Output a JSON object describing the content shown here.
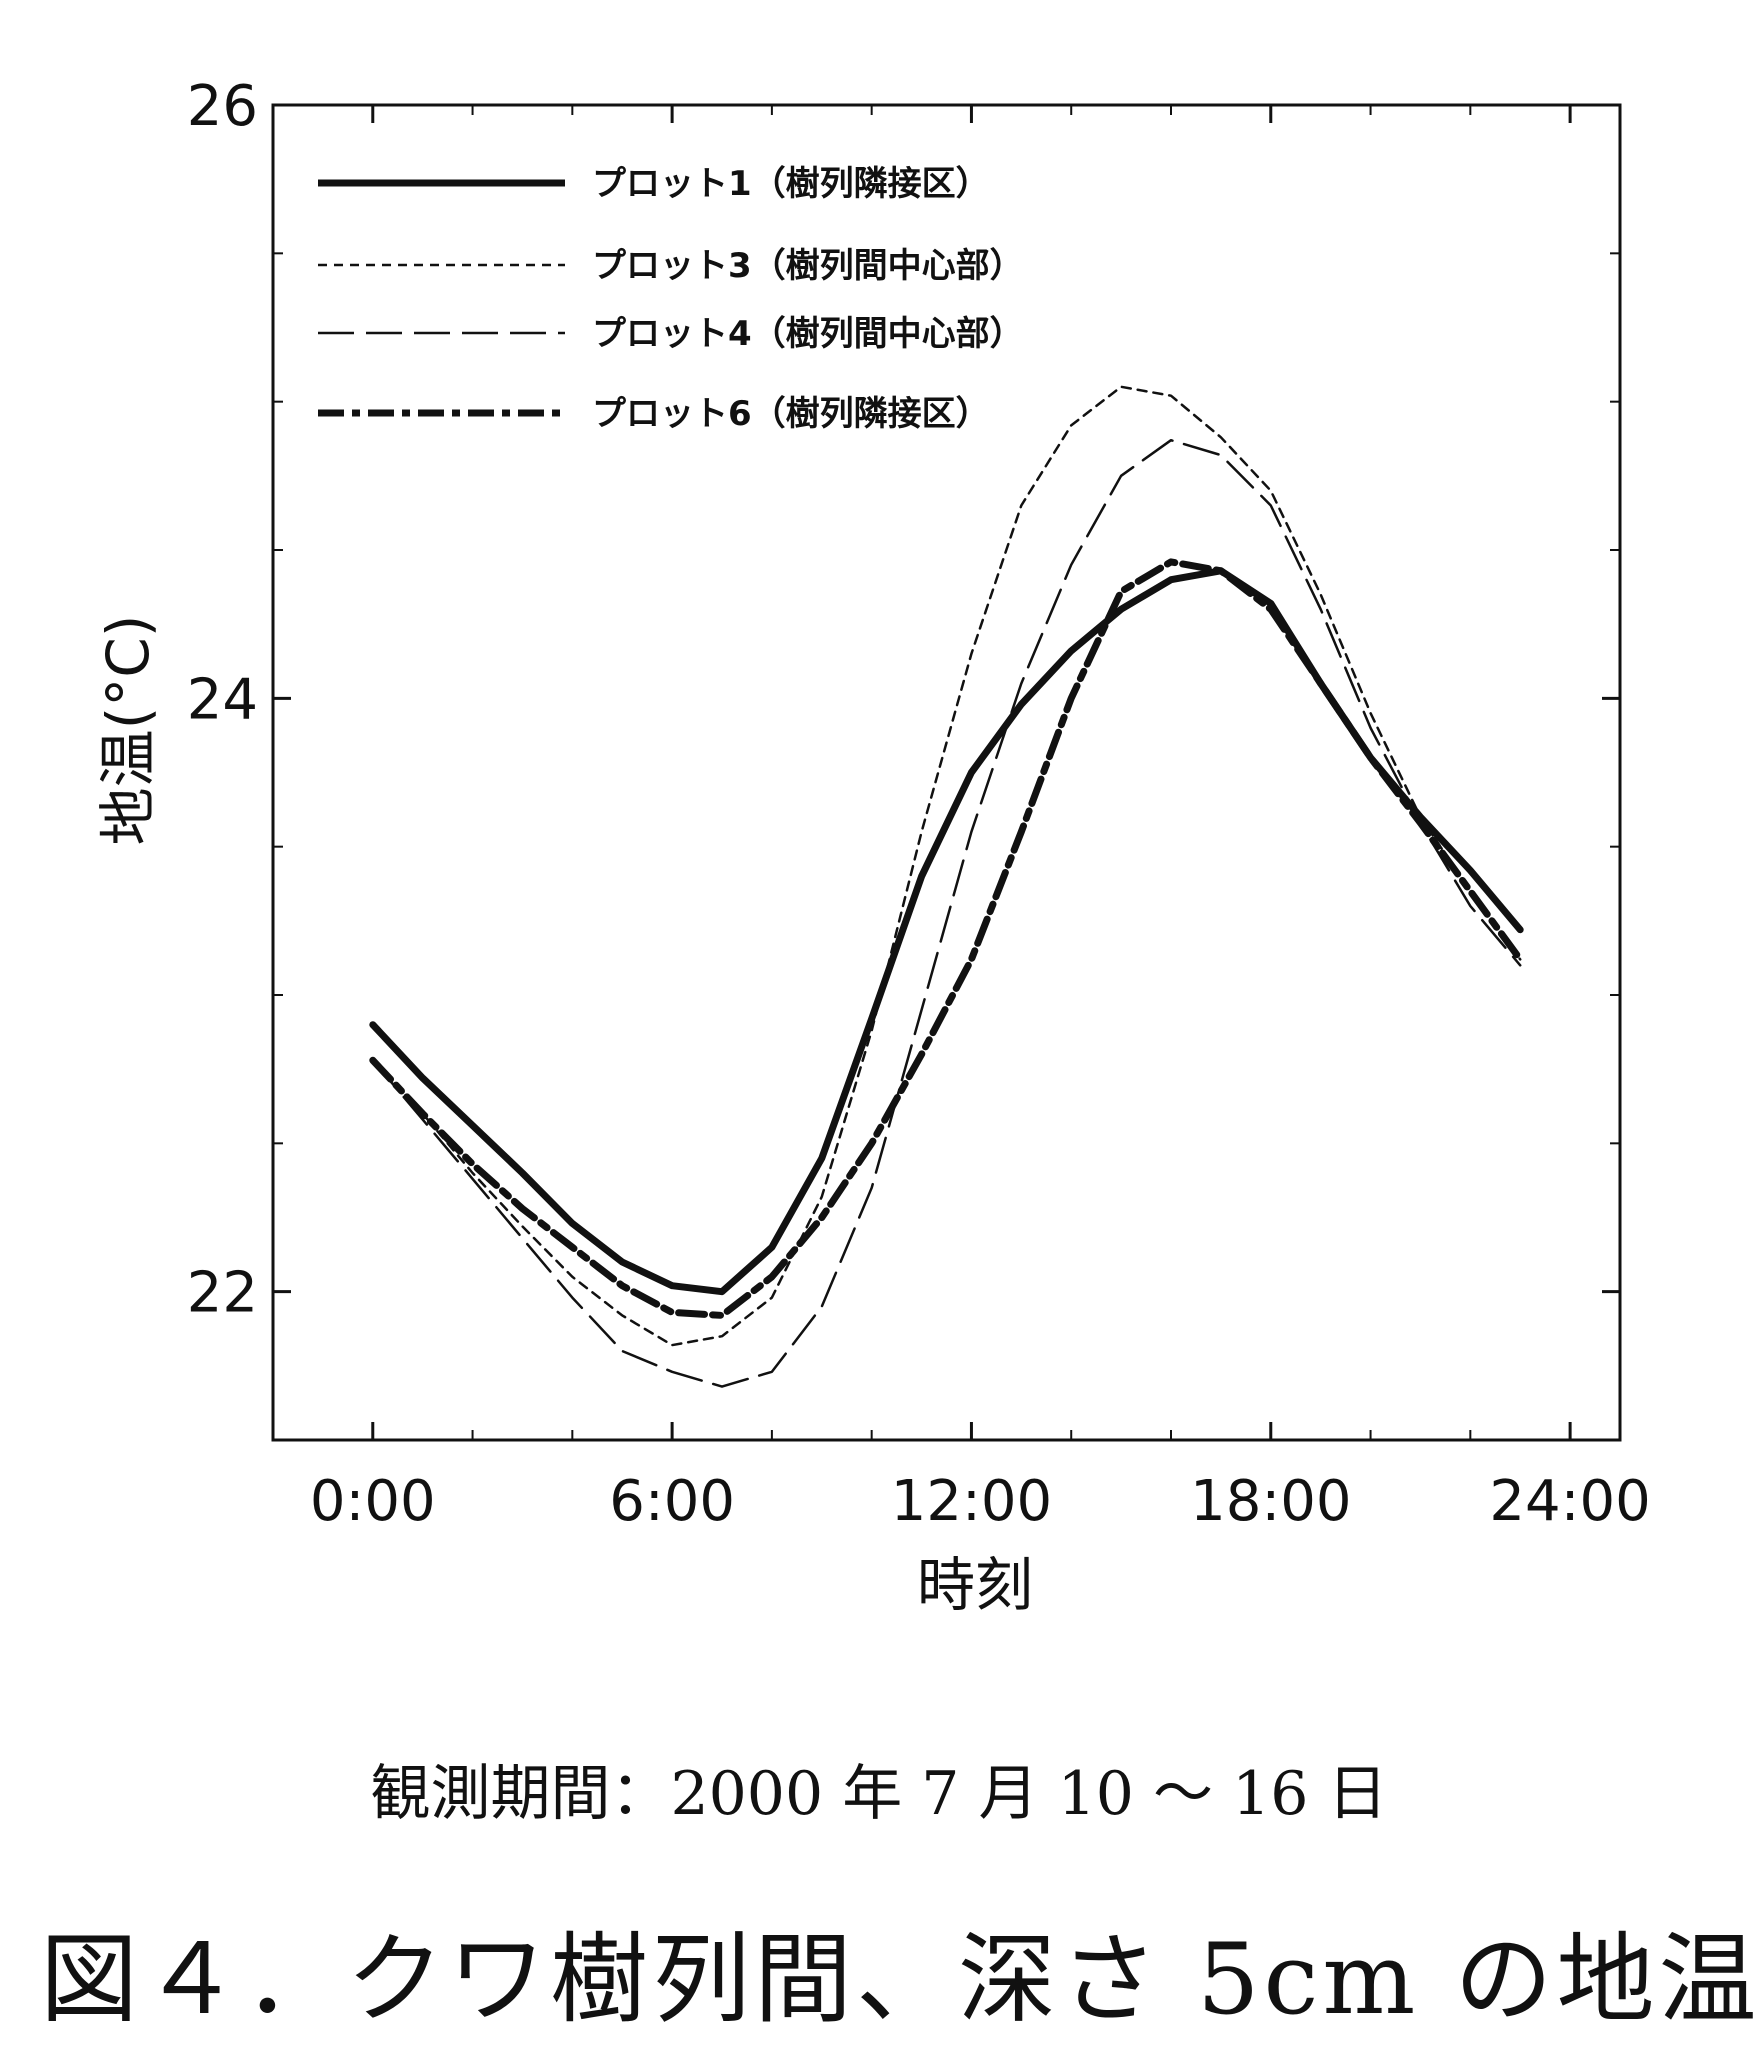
{
  "chart_data": {
    "type": "line",
    "title": "",
    "xlabel": "時刻",
    "ylabel": "地温(°C)",
    "xlim": [
      -2,
      25
    ],
    "ylim": [
      21.5,
      26
    ],
    "x_ticks": [
      0,
      6,
      12,
      18,
      24
    ],
    "x_tick_labels": [
      "0:00",
      "6:00",
      "12:00",
      "18:00",
      "24:00"
    ],
    "y_ticks": [
      22,
      24,
      26
    ],
    "y_tick_labels": [
      "22",
      "24",
      "26"
    ],
    "grid": false,
    "legend_position": "top-left",
    "x": [
      0,
      1,
      2,
      3,
      4,
      5,
      6,
      7,
      8,
      9,
      10,
      11,
      12,
      13,
      14,
      15,
      16,
      17,
      18,
      19,
      20,
      21,
      22,
      23
    ],
    "series": [
      {
        "name": "プロット1（樹列隣接区）",
        "style": "solid",
        "values": [
          22.9,
          22.72,
          22.56,
          22.4,
          22.23,
          22.1,
          22.02,
          22.0,
          22.15,
          22.45,
          22.92,
          23.4,
          23.75,
          23.98,
          24.16,
          24.3,
          24.4,
          24.43,
          24.32,
          24.05,
          23.8,
          23.6,
          23.42,
          23.22
        ]
      },
      {
        "name": "プロット3（樹列間中心部）",
        "style": "short-dash",
        "values": [
          22.78,
          22.6,
          22.4,
          22.22,
          22.05,
          21.92,
          21.82,
          21.85,
          21.98,
          22.32,
          22.88,
          23.55,
          24.15,
          24.65,
          24.92,
          25.05,
          25.02,
          24.88,
          24.7,
          24.35,
          23.95,
          23.6,
          23.35,
          23.12
        ]
      },
      {
        "name": "プロット4（樹列間中心部）",
        "style": "long-dash",
        "values": [
          22.78,
          22.58,
          22.38,
          22.18,
          21.98,
          21.8,
          21.73,
          21.68,
          21.73,
          21.95,
          22.35,
          22.95,
          23.55,
          24.05,
          24.45,
          24.75,
          24.87,
          24.82,
          24.65,
          24.3,
          23.9,
          23.58,
          23.3,
          23.1
        ]
      },
      {
        "name": "プロット6（樹列隣接区）",
        "style": "bold-dash",
        "values": [
          22.78,
          22.6,
          22.43,
          22.28,
          22.15,
          22.02,
          21.93,
          21.92,
          22.05,
          22.25,
          22.5,
          22.8,
          23.12,
          23.55,
          24.0,
          24.36,
          24.46,
          24.43,
          24.3,
          24.05,
          23.8,
          23.58,
          23.35,
          23.12
        ]
      }
    ]
  },
  "period_text": "観測期間：2000 年 7 月 10 〜 16 日",
  "caption_text": "図４．クワ樹列間、深さ 5cm の地温"
}
